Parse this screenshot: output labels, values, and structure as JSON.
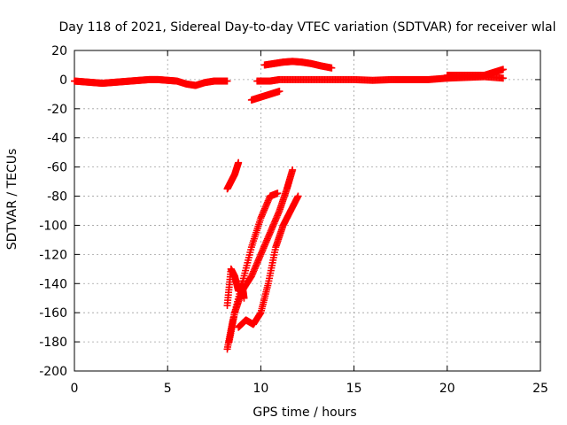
{
  "chart_data": {
    "type": "scatter",
    "title": "Day 118 of 2021, Sidereal Day-to-day VTEC variation (SDTVAR) for receiver wlal",
    "xlabel": "GPS time / hours",
    "ylabel": "SDTVAR / TECUs",
    "xlim": [
      0,
      25
    ],
    "ylim": [
      -200,
      20
    ],
    "xticks": [
      0,
      5,
      10,
      15,
      20,
      25
    ],
    "yticks": [
      20,
      0,
      -20,
      -40,
      -60,
      -80,
      -100,
      -120,
      -140,
      -160,
      -180,
      -200
    ],
    "grid": true,
    "marker": "+",
    "color": "#ff0000",
    "series": [
      {
        "x": [
          0,
          0.5,
          1,
          1.5,
          2,
          2.5,
          3,
          3.5,
          4,
          4.5,
          5,
          5.5,
          6,
          6.5,
          7,
          7.5,
          8.2
        ],
        "y": [
          -1,
          -1.5,
          -2,
          -2.5,
          -2,
          -1.5,
          -1,
          -0.5,
          0,
          0,
          -0.5,
          -1,
          -3,
          -4,
          -2,
          -1,
          -1
        ]
      },
      {
        "x": [
          9.5,
          10,
          10.5,
          11
        ],
        "y": [
          -14,
          -12,
          -10,
          -8
        ]
      },
      {
        "x": [
          10.2,
          10.7,
          11.2,
          11.7,
          12.2,
          12.7,
          13.2,
          13.8
        ],
        "y": [
          10,
          11,
          12,
          12.5,
          12,
          11,
          9.5,
          8
        ]
      },
      {
        "x": [
          9.8,
          10.5,
          11,
          12,
          13,
          14,
          15,
          16,
          17,
          18,
          19,
          20,
          21,
          22,
          23
        ],
        "y": [
          -1,
          -1,
          0,
          0,
          0,
          0,
          0,
          -0.5,
          0,
          0,
          0,
          1,
          1.5,
          2,
          1
        ]
      },
      {
        "x": [
          20,
          21,
          22,
          22.5,
          23
        ],
        "y": [
          3,
          3,
          3,
          5,
          7
        ]
      },
      {
        "x": [
          8.2,
          8.4,
          8.6,
          8.8
        ],
        "y": [
          -75,
          -70,
          -65,
          -57
        ]
      },
      {
        "x": [
          8.2,
          8.5,
          9,
          9.5,
          10,
          10.5,
          10.9
        ],
        "y": [
          -185,
          -165,
          -140,
          -115,
          -95,
          -80,
          -78
        ]
      },
      {
        "x": [
          8.3,
          8.6,
          9,
          9.5,
          10,
          10.5,
          11,
          11.4,
          11.7
        ],
        "y": [
          -180,
          -160,
          -145,
          -135,
          -120,
          -105,
          -90,
          -75,
          -62
        ]
      },
      {
        "x": [
          8.2,
          8.4,
          8.6,
          8.8,
          9,
          9.1
        ],
        "y": [
          -155,
          -130,
          -135,
          -145,
          -140,
          -150
        ]
      },
      {
        "x": [
          8.8,
          9.2,
          9.6,
          10,
          10.4,
          10.8,
          11.2,
          11.6,
          12
        ],
        "y": [
          -170,
          -165,
          -168,
          -160,
          -140,
          -115,
          -100,
          -90,
          -80
        ]
      }
    ]
  }
}
